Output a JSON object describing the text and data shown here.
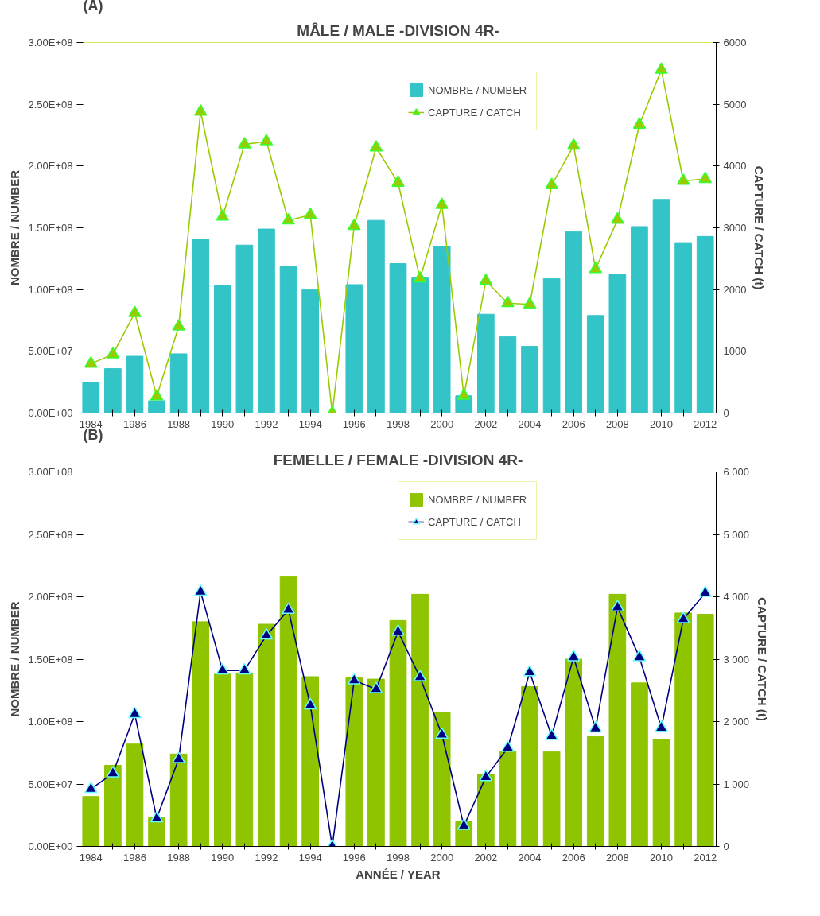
{
  "chart_data": [
    {
      "type": "bar",
      "title": "MÂLE / MALE -DIVISION 4R-",
      "ylabel": "NOMBRE / NUMBER",
      "y2label": "CAPTURE / CATCH (t)",
      "annotations": [
        "(A)"
      ],
      "categories": [
        "1984",
        null,
        "1986",
        null,
        "1988",
        null,
        "1990",
        null,
        "1992",
        null,
        "1994",
        null,
        "1996",
        null,
        "1998",
        null,
        "2000",
        null,
        "2002",
        null,
        "2004",
        null,
        "2006",
        null,
        "2008",
        null,
        "2010",
        null,
        "2012"
      ],
      "series": [
        {
          "name": "NOMBRE / NUMBER",
          "color": "#33c4c8",
          "values": [
            25000000,
            36000000,
            46000000,
            10000000,
            48000000,
            141000000,
            103000000,
            136000000,
            149000000,
            119000000,
            100000000,
            0,
            104000000,
            156000000,
            121000000,
            110000000,
            135000000,
            14000000,
            80000000,
            62000000,
            54000000,
            109000000,
            147000000,
            79000000,
            112000000,
            151000000,
            173000000,
            138000000,
            143000000
          ]
        },
        {
          "name": "CAPTURE / CATCH",
          "type": "line",
          "axis": "y2",
          "color": "#99cc00",
          "marker": "triangle",
          "values": [
            800,
            950,
            1620,
            270,
            1400,
            4880,
            3180,
            4350,
            4400,
            3120,
            3210,
            0,
            3030,
            4300,
            3730,
            2180,
            3370,
            280,
            2140,
            1780,
            1760,
            3690,
            4330,
            2330,
            3130,
            4670,
            5560,
            3760,
            3790
          ]
        }
      ],
      "ylim": [
        0,
        300000000
      ],
      "yticks": [
        {
          "value": 0,
          "label": "0.00E+00"
        },
        {
          "value": 50000000,
          "label": "5.00E+07"
        },
        {
          "value": 100000000,
          "label": "1.00E+08"
        },
        {
          "value": 150000000,
          "label": "1.50E+08"
        },
        {
          "value": 200000000,
          "label": "2.00E+08"
        },
        {
          "value": 250000000,
          "label": "2.50E+08"
        },
        {
          "value": 300000000,
          "label": "3.00E+08"
        }
      ],
      "y2lim": [
        0,
        6000
      ],
      "y2ticks": [
        0,
        1000,
        2000,
        3000,
        4000,
        5000,
        6000
      ],
      "legend": "top right",
      "grid": false
    },
    {
      "type": "bar",
      "title": "FEMELLE / FEMALE -DIVISION 4R-",
      "xlabel": "ANNÉE / YEAR",
      "ylabel": "NOMBRE / NUMBER",
      "y2label": "CAPTURE / CATCH (t)",
      "annotations": [
        "(B)"
      ],
      "categories": [
        "1984",
        null,
        "1986",
        null,
        "1988",
        null,
        "1990",
        null,
        "1992",
        null,
        "1994",
        null,
        "1996",
        null,
        "1998",
        null,
        "2000",
        null,
        "2002",
        null,
        "2004",
        null,
        "2006",
        null,
        "2008",
        null,
        "2010",
        null,
        "2012"
      ],
      "series": [
        {
          "name": "NOMBRE / NUMBER",
          "color": "#8fc400",
          "values": [
            40000000,
            65000000,
            82000000,
            23000000,
            74000000,
            180000000,
            138000000,
            139000000,
            178000000,
            216000000,
            136000000,
            0,
            135000000,
            134000000,
            181000000,
            202000000,
            107000000,
            20000000,
            58000000,
            76000000,
            128000000,
            76000000,
            150000000,
            88000000,
            202000000,
            131000000,
            86000000,
            187000000,
            186000000
          ]
        },
        {
          "name": "CAPTURE / CATCH",
          "type": "line",
          "axis": "y2",
          "color": "#000080",
          "marker": "triangle",
          "values": [
            920,
            1170,
            2120,
            450,
            1400,
            4080,
            2820,
            2820,
            3380,
            3790,
            2260,
            0,
            2660,
            2520,
            3440,
            2710,
            1790,
            330,
            1110,
            1580,
            2790,
            1770,
            3030,
            1890,
            3830,
            3030,
            1900,
            3640,
            4060
          ]
        }
      ],
      "ylim": [
        0,
        300000000
      ],
      "yticks": [
        {
          "value": 0,
          "label": "0.00E+00"
        },
        {
          "value": 50000000,
          "label": "5.00E+07"
        },
        {
          "value": 100000000,
          "label": "1.00E+08"
        },
        {
          "value": 150000000,
          "label": "1.50E+08"
        },
        {
          "value": 200000000,
          "label": "2.00E+08"
        },
        {
          "value": 250000000,
          "label": "2.50E+08"
        },
        {
          "value": 300000000,
          "label": "3.00E+08"
        }
      ],
      "y2lim": [
        0,
        6000
      ],
      "y2ticks": [
        {
          "value": 0,
          "label": "0"
        },
        {
          "value": 1000,
          "label": "1 000"
        },
        {
          "value": 2000,
          "label": "2 000"
        },
        {
          "value": 3000,
          "label": "3 000"
        },
        {
          "value": 4000,
          "label": "4 000"
        },
        {
          "value": 5000,
          "label": "5 000"
        },
        {
          "value": 6000,
          "label": "6 000"
        }
      ],
      "legend": "top right",
      "grid": false
    }
  ]
}
